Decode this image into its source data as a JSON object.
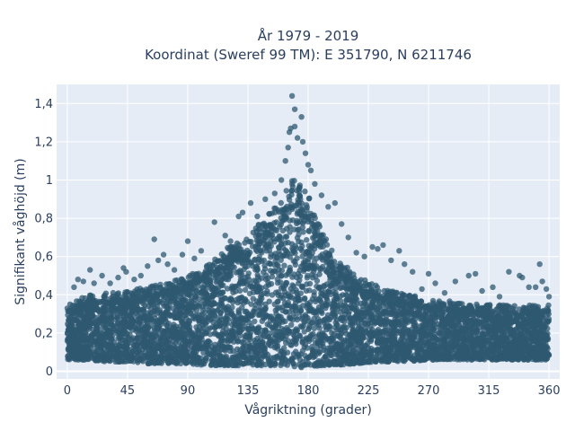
{
  "chart_data": {
    "type": "scatter",
    "title_lines": [
      "År 1979 - 2019",
      "Koordinat (Sweref 99 TM): E 351790, N 6211746"
    ],
    "xlabel": "Vågriktning (grader)",
    "ylabel": "Signifikant våghöjd (m)",
    "xlim": [
      -8,
      368
    ],
    "ylim": [
      -0.04,
      1.5
    ],
    "x_ticks": [
      {
        "value": 0,
        "label": "0"
      },
      {
        "value": 45,
        "label": "45"
      },
      {
        "value": 90,
        "label": "90"
      },
      {
        "value": 135,
        "label": "135"
      },
      {
        "value": 180,
        "label": "180"
      },
      {
        "value": 225,
        "label": "225"
      },
      {
        "value": 270,
        "label": "270"
      },
      {
        "value": 315,
        "label": "315"
      },
      {
        "value": 360,
        "label": "360"
      }
    ],
    "y_ticks": [
      {
        "value": 0,
        "label": "0"
      },
      {
        "value": 0.2,
        "label": "0,2"
      },
      {
        "value": 0.4,
        "label": "0,4"
      },
      {
        "value": 0.6,
        "label": "0,6"
      },
      {
        "value": 0.8,
        "label": "0,8"
      },
      {
        "value": 1.0,
        "label": "1"
      },
      {
        "value": 1.2,
        "label": "1,2"
      },
      {
        "value": 1.4,
        "label": "1,4"
      }
    ],
    "grid": true,
    "colors": {
      "marker": "#2e5870",
      "plot_bg": "#e5ecf6",
      "grid": "#ffffff"
    },
    "envelope": {
      "description_x": [
        0,
        15,
        30,
        45,
        60,
        75,
        90,
        105,
        120,
        135,
        150,
        160,
        170,
        180,
        190,
        200,
        215,
        230,
        250,
        270,
        300,
        330,
        360
      ],
      "upper_y": [
        0.32,
        0.37,
        0.38,
        0.39,
        0.41,
        0.43,
        0.46,
        0.52,
        0.6,
        0.66,
        0.76,
        0.84,
        0.95,
        0.86,
        0.68,
        0.56,
        0.47,
        0.42,
        0.38,
        0.35,
        0.33,
        0.32,
        0.32
      ],
      "lower_y": [
        0.06,
        0.06,
        0.05,
        0.05,
        0.04,
        0.04,
        0.04,
        0.03,
        0.03,
        0.03,
        0.03,
        0.02,
        0.02,
        0.02,
        0.03,
        0.03,
        0.04,
        0.05,
        0.05,
        0.06,
        0.06,
        0.06,
        0.06
      ]
    },
    "outlier_points": [
      {
        "x": 2,
        "y": 0.35
      },
      {
        "x": 5,
        "y": 0.44
      },
      {
        "x": 8,
        "y": 0.48
      },
      {
        "x": 12,
        "y": 0.47
      },
      {
        "x": 17,
        "y": 0.53
      },
      {
        "x": 20,
        "y": 0.46
      },
      {
        "x": 26,
        "y": 0.5
      },
      {
        "x": 32,
        "y": 0.46
      },
      {
        "x": 38,
        "y": 0.49
      },
      {
        "x": 42,
        "y": 0.54
      },
      {
        "x": 44,
        "y": 0.52
      },
      {
        "x": 50,
        "y": 0.48
      },
      {
        "x": 55,
        "y": 0.5
      },
      {
        "x": 60,
        "y": 0.55
      },
      {
        "x": 65,
        "y": 0.69
      },
      {
        "x": 68,
        "y": 0.58
      },
      {
        "x": 72,
        "y": 0.61
      },
      {
        "x": 75,
        "y": 0.56
      },
      {
        "x": 80,
        "y": 0.53
      },
      {
        "x": 86,
        "y": 0.61
      },
      {
        "x": 90,
        "y": 0.68
      },
      {
        "x": 95,
        "y": 0.59
      },
      {
        "x": 100,
        "y": 0.63
      },
      {
        "x": 110,
        "y": 0.78
      },
      {
        "x": 118,
        "y": 0.71
      },
      {
        "x": 122,
        "y": 0.68
      },
      {
        "x": 128,
        "y": 0.81
      },
      {
        "x": 131,
        "y": 0.83
      },
      {
        "x": 137,
        "y": 0.88
      },
      {
        "x": 142,
        "y": 0.81
      },
      {
        "x": 148,
        "y": 0.9
      },
      {
        "x": 155,
        "y": 0.93
      },
      {
        "x": 160,
        "y": 1.0
      },
      {
        "x": 163,
        "y": 1.1
      },
      {
        "x": 165,
        "y": 1.17
      },
      {
        "x": 166,
        "y": 1.25
      },
      {
        "x": 167,
        "y": 1.27
      },
      {
        "x": 168,
        "y": 1.44
      },
      {
        "x": 170,
        "y": 1.37
      },
      {
        "x": 170,
        "y": 1.28
      },
      {
        "x": 172,
        "y": 1.22
      },
      {
        "x": 175,
        "y": 1.33
      },
      {
        "x": 176,
        "y": 1.2
      },
      {
        "x": 178,
        "y": 1.14
      },
      {
        "x": 180,
        "y": 1.08
      },
      {
        "x": 182,
        "y": 1.05
      },
      {
        "x": 185,
        "y": 0.98
      },
      {
        "x": 190,
        "y": 0.92
      },
      {
        "x": 195,
        "y": 0.86
      },
      {
        "x": 200,
        "y": 0.88
      },
      {
        "x": 205,
        "y": 0.77
      },
      {
        "x": 210,
        "y": 0.7
      },
      {
        "x": 216,
        "y": 0.62
      },
      {
        "x": 222,
        "y": 0.6
      },
      {
        "x": 228,
        "y": 0.65
      },
      {
        "x": 232,
        "y": 0.64
      },
      {
        "x": 236,
        "y": 0.66
      },
      {
        "x": 242,
        "y": 0.58
      },
      {
        "x": 248,
        "y": 0.63
      },
      {
        "x": 252,
        "y": 0.56
      },
      {
        "x": 258,
        "y": 0.52
      },
      {
        "x": 265,
        "y": 0.43
      },
      {
        "x": 270,
        "y": 0.51
      },
      {
        "x": 275,
        "y": 0.46
      },
      {
        "x": 282,
        "y": 0.41
      },
      {
        "x": 290,
        "y": 0.47
      },
      {
        "x": 300,
        "y": 0.5
      },
      {
        "x": 305,
        "y": 0.51
      },
      {
        "x": 310,
        "y": 0.42
      },
      {
        "x": 318,
        "y": 0.44
      },
      {
        "x": 323,
        "y": 0.39
      },
      {
        "x": 330,
        "y": 0.52
      },
      {
        "x": 338,
        "y": 0.5
      },
      {
        "x": 340,
        "y": 0.49
      },
      {
        "x": 345,
        "y": 0.44
      },
      {
        "x": 350,
        "y": 0.44
      },
      {
        "x": 353,
        "y": 0.56
      },
      {
        "x": 355,
        "y": 0.47
      },
      {
        "x": 358,
        "y": 0.43
      },
      {
        "x": 360,
        "y": 0.39
      }
    ]
  }
}
